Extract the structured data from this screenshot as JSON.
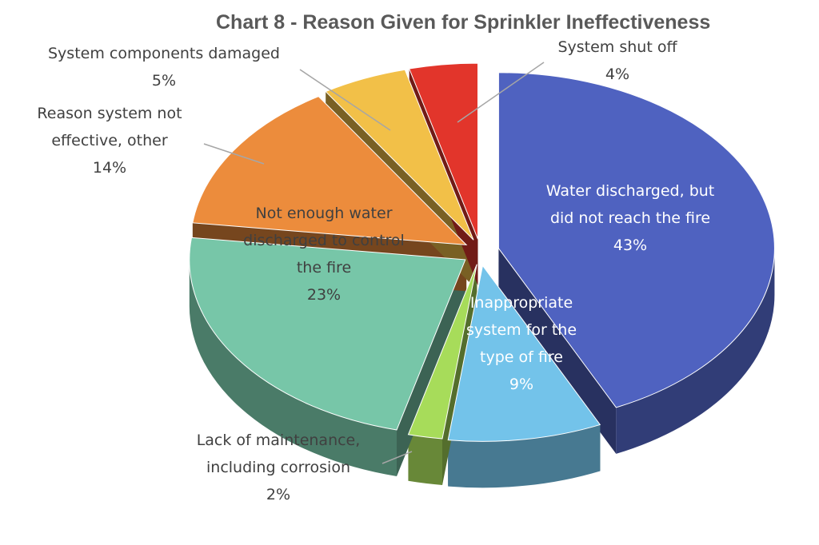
{
  "chart_data": {
    "type": "pie",
    "title": "Chart 8 - Reason Given for Sprinkler Ineffectiveness",
    "slices": [
      {
        "label": "Water discharged, but did not reach the fire",
        "value": 43,
        "value_label": "43%",
        "color": "#4f62c0",
        "label_lines": [
          "Water discharged, but",
          "did not reach the fire",
          "43%"
        ]
      },
      {
        "label": "Inappropriate system for the type of fire",
        "value": 9,
        "value_label": "9%",
        "color": "#73c3ea",
        "label_lines": [
          "Inappropriate",
          "system for the",
          "type of fire",
          "9%"
        ]
      },
      {
        "label": "Lack of maintenance, including corrosion",
        "value": 2,
        "value_label": "2%",
        "color": "#a7dc5a",
        "label_lines": [
          "Lack of maintenance,",
          "including corrosion",
          "2%"
        ]
      },
      {
        "label": "Not enough water discharged to control the fire",
        "value": 23,
        "value_label": "23%",
        "color": "#77c6a8",
        "label_lines": [
          "Not enough water",
          "discharged to control",
          "the fire",
          "23%"
        ]
      },
      {
        "label": "Reason system not effective, other",
        "value": 14,
        "value_label": "14%",
        "color": "#ec8c3c",
        "label_lines": [
          "Reason system not",
          "effective, other",
          "14%"
        ]
      },
      {
        "label": "System components damaged",
        "value": 5,
        "value_label": "5%",
        "color": "#f2c048",
        "label_lines": [
          "System components damaged",
          "5%"
        ]
      },
      {
        "label": "System shut off",
        "value": 4,
        "value_label": "4%",
        "color": "#e2352b",
        "label_lines": [
          "System shut off",
          "4%"
        ]
      }
    ],
    "legend": "none",
    "style": "3d-exploded"
  }
}
